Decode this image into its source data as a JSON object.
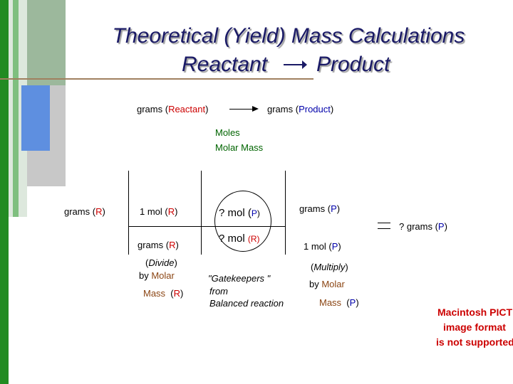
{
  "slide": {
    "title_line1": "Theoretical (Yield) Mass Calculations",
    "title_line2_left": "Reactant",
    "title_line2_right": "Product",
    "top_flow": {
      "left_prefix": "grams (",
      "left_word": "Reactant",
      "left_suffix": ")",
      "right_prefix": "grams (",
      "right_word": "Product",
      "right_suffix": ")"
    },
    "center_labels": {
      "moles": "Moles",
      "molar_mass": "Molar Mass"
    },
    "grid": {
      "col1": {
        "prefix": "grams (",
        "letter": "R",
        "suffix": ")"
      },
      "col2_top": {
        "prefix": "1 mol (",
        "letter": "R",
        "suffix": ")"
      },
      "col2_bottom": {
        "prefix": "grams (",
        "letter": "R",
        "suffix": ")"
      },
      "col2_note_line1_open": "(",
      "col2_note_line1_word": "Divide",
      "col2_note_line1_close": ")",
      "col2_note_line2_prefix": "by ",
      "col2_note_line2_word": "Molar",
      "col2_note_line3_word": "Mass",
      "col2_note_line3_open": "(",
      "col2_note_line3_letter": "R",
      "col2_note_line3_close": ")",
      "col3_top": {
        "prefix": "? mol (",
        "letter": "P",
        "suffix": ")"
      },
      "col3_bottom": {
        "prefix": "? mol ",
        "small": "(R)"
      },
      "col3_note_line1": "\"Gatekeepers \"",
      "col3_note_line2": "from",
      "col3_note_line3": "Balanced reaction",
      "col4_top": {
        "prefix": "grams (",
        "letter": "P",
        "suffix": ")"
      },
      "col4_bottom": {
        "prefix": "1 mol (",
        "letter": "P",
        "suffix": ")"
      },
      "col4_note_line1_open": "(",
      "col4_note_line1_word": "Multiply",
      "col4_note_line1_close": ")",
      "col4_note_line2_prefix": "by ",
      "col4_note_line2_word": "Molar",
      "col4_note_line3_word": "Mass",
      "col4_note_line3_open": "(",
      "col4_note_line3_letter": "P",
      "col4_note_line3_close": ")",
      "result": {
        "prefix": "? grams (",
        "letter": "P",
        "suffix": ")"
      }
    },
    "pict_notice": {
      "line1": "Macintosh PICT",
      "line2": "image format",
      "line3": "is not supported"
    }
  }
}
